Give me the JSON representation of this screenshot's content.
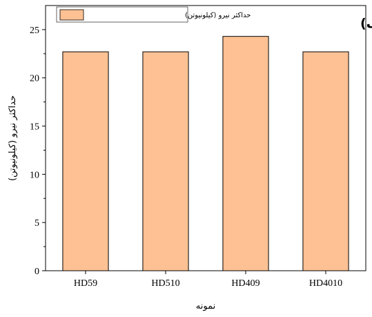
{
  "chart_data": {
    "type": "bar",
    "panel_label": "(الف)",
    "categories": [
      "HD59",
      "HD510",
      "HD409",
      "HD4010"
    ],
    "series": [
      {
        "name": "حداکثر نیرو (کیلونیوتن)",
        "values": [
          22.7,
          22.7,
          24.3,
          22.7
        ]
      }
    ],
    "xlabel": "نمونه",
    "ylabel": "حداکثر نیرو (کیلونیوتن)",
    "ylim": [
      0,
      27.5
    ],
    "yticks": [
      0,
      5,
      10,
      15,
      20,
      25
    ],
    "colors": {
      "bar_fill": "#FDC193",
      "bar_stroke": "#000000"
    },
    "grid": false,
    "legend_position": "top-left"
  }
}
